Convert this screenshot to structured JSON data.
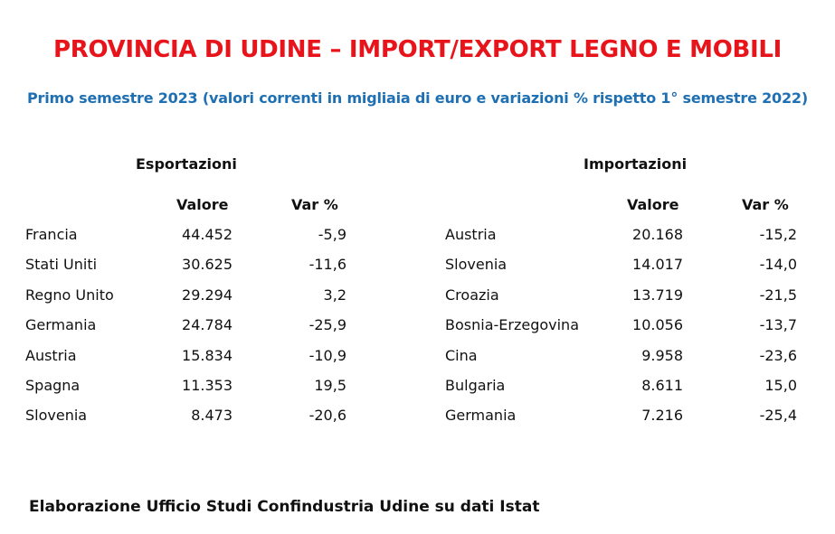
{
  "title": "PROVINCIA DI UDINE – IMPORT/EXPORT LEGNO E MOBILI",
  "subtitle": "Primo semestre 2023 (valori correnti in migliaia di euro e variazioni % rispetto 1° semestre 2022)",
  "exports": {
    "heading": "Esportazioni",
    "col_value": "Valore",
    "col_var": "Var %",
    "rows": [
      {
        "country": "Francia",
        "value": "44.452",
        "var": "-5,9"
      },
      {
        "country": "Stati Uniti",
        "value": "30.625",
        "var": "-11,6"
      },
      {
        "country": "Regno Unito",
        "value": "29.294",
        "var": "3,2"
      },
      {
        "country": "Germania",
        "value": "24.784",
        "var": "-25,9"
      },
      {
        "country": "Austria",
        "value": "15.834",
        "var": "-10,9"
      },
      {
        "country": "Spagna",
        "value": "11.353",
        "var": "19,5"
      },
      {
        "country": "Slovenia",
        "value": "8.473",
        "var": "-20,6"
      }
    ]
  },
  "imports": {
    "heading": "Importazioni",
    "col_value": "Valore",
    "col_var": "Var %",
    "rows": [
      {
        "country": "Austria",
        "value": "20.168",
        "var": "-15,2"
      },
      {
        "country": "Slovenia",
        "value": "14.017",
        "var": "-14,0"
      },
      {
        "country": "Croazia",
        "value": "13.719",
        "var": "-21,5"
      },
      {
        "country": "Bosnia-Erzegovina",
        "value": "10.056",
        "var": "-13,7"
      },
      {
        "country": "Cina",
        "value": "9.958",
        "var": "-23,6"
      },
      {
        "country": "Bulgaria",
        "value": "8.611",
        "var": "15,0"
      },
      {
        "country": "Germania",
        "value": "7.216",
        "var": "-25,4"
      }
    ]
  },
  "footer": "Elaborazione Ufficio Studi Confindustria Udine su dati Istat",
  "colors": {
    "title": "#e8141b",
    "subtitle": "#1f6fb3"
  }
}
